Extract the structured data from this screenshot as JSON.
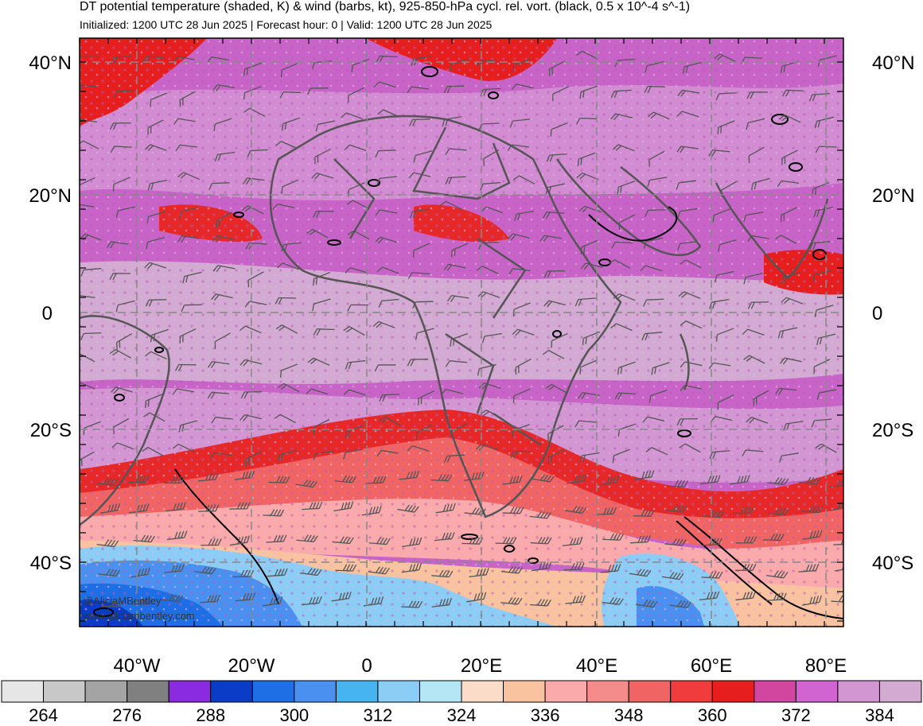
{
  "header": {
    "title": "DT potential temperature (shaded, K) & wind (barbs, kt), 925-850-hPa cycl. rel. vort. (black, 0.5 x 10^-4 s^-1)",
    "subtitle": "Initialized: 1200 UTC 28 Jun 2025 | Forecast hour: 0 | Valid: 1200 UTC 28 Jun 2025"
  },
  "map": {
    "lat_labels": [
      "40°N",
      "20°N",
      "0",
      "20°S",
      "40°S"
    ],
    "lon_labels": [
      "40°W",
      "20°W",
      "0",
      "20°E",
      "40°E",
      "60°E",
      "80°E"
    ],
    "watermark": [
      "@AliciaMBentley",
      "www.aliciambentley.com"
    ]
  },
  "colorbar": {
    "colors": [
      "#e6e6e6",
      "#c8c8c8",
      "#a4a4a4",
      "#808080",
      "#8a2be2",
      "#0a3cc8",
      "#1e6ee6",
      "#4a90f0",
      "#46b4f0",
      "#8ccdf5",
      "#b4e6f5",
      "#fadcc8",
      "#fac3a0",
      "#faaaaa",
      "#f58c8c",
      "#f06464",
      "#f03c3c",
      "#e61e1e",
      "#d246a0",
      "#d264d2",
      "#d296d2",
      "#d2aad2"
    ],
    "labels": [
      "264",
      "276",
      "288",
      "300",
      "312",
      "324",
      "336",
      "348",
      "360",
      "372",
      "384"
    ]
  }
}
